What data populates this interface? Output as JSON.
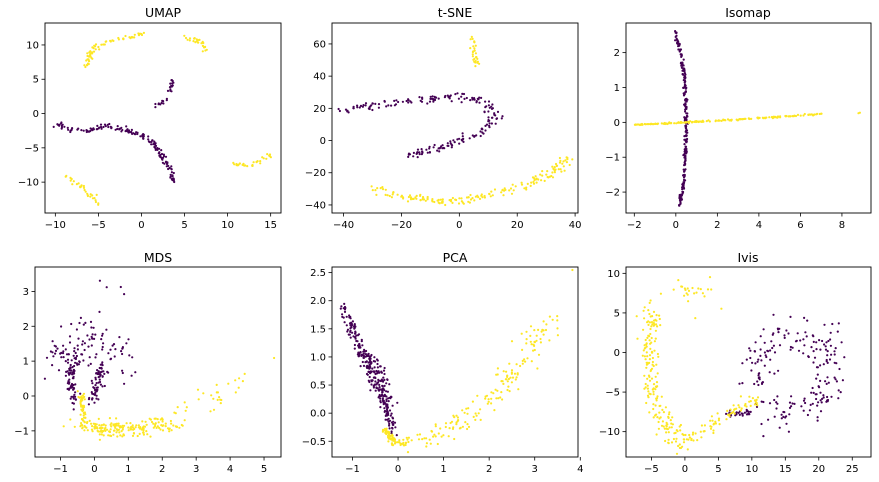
{
  "colors": {
    "class0": "#440154",
    "class1": "#fde725"
  },
  "chart_data": [
    {
      "type": "scatter",
      "title": "UMAP",
      "xlim": [
        -11.2,
        16.2
      ],
      "ylim": [
        -14.5,
        13.2
      ],
      "xticks": [
        -10,
        -5,
        0,
        5,
        10,
        15
      ],
      "yticks": [
        -10,
        -5,
        0,
        5,
        10
      ],
      "series": [
        {
          "color_key": "class0",
          "n": 160,
          "jitter": [
            0.18,
            0.18
          ],
          "path": [
            [
              -10,
              -1.5
            ],
            [
              -8,
              -2.3
            ],
            [
              -6,
              -2.5
            ],
            [
              -4,
              -1.6
            ],
            [
              -2,
              -2.5
            ],
            [
              0,
              -3
            ],
            [
              1.5,
              -4.5
            ],
            [
              2.5,
              -6.5
            ],
            [
              3.5,
              -8.5
            ],
            [
              3.8,
              -10
            ]
          ]
        },
        {
          "color_key": "class0",
          "n": 25,
          "jitter": [
            0.12,
            0.12
          ],
          "path": [
            [
              1.5,
              1
            ],
            [
              2.8,
              1.8
            ],
            [
              3.3,
              3
            ],
            [
              3.6,
              5
            ]
          ]
        },
        {
          "color_key": "class1",
          "n": 35,
          "jitter": [
            0.2,
            0.2
          ],
          "path": [
            [
              -6.5,
              6.8
            ],
            [
              -5.8,
              8.5
            ],
            [
              -5.2,
              10
            ]
          ]
        },
        {
          "color_key": "class1",
          "n": 30,
          "jitter": [
            0.12,
            0.12
          ],
          "path": [
            [
              -4.8,
              10.2
            ],
            [
              -2,
              11
            ],
            [
              0.5,
              11.7
            ]
          ]
        },
        {
          "color_key": "class1",
          "n": 25,
          "jitter": [
            0.15,
            0.15
          ],
          "path": [
            [
              5.2,
              11.2
            ],
            [
              6.8,
              10.5
            ],
            [
              7.5,
              9.2
            ]
          ]
        },
        {
          "color_key": "class1",
          "n": 30,
          "jitter": [
            0.2,
            0.2
          ],
          "path": [
            [
              -9,
              -9
            ],
            [
              -7,
              -10.5
            ],
            [
              -5,
              -13
            ]
          ]
        },
        {
          "color_key": "class1",
          "n": 30,
          "jitter": [
            0.15,
            0.15
          ],
          "path": [
            [
              10.5,
              -7.2
            ],
            [
              12.5,
              -7.8
            ],
            [
              15,
              -6
            ]
          ]
        }
      ]
    },
    {
      "type": "scatter",
      "title": "t-SNE",
      "xlim": [
        -44,
        41
      ],
      "ylim": [
        -45,
        73
      ],
      "xticks": [
        -40,
        -20,
        0,
        20,
        40
      ],
      "yticks": [
        -40,
        -20,
        0,
        20,
        40,
        60
      ],
      "series": [
        {
          "color_key": "class0",
          "n": 200,
          "jitter": [
            1.2,
            1.3
          ],
          "path": [
            [
              -40,
              18
            ],
            [
              -30,
              22
            ],
            [
              -20,
              24
            ],
            [
              -10,
              26
            ],
            [
              0,
              28
            ],
            [
              8,
              24
            ],
            [
              12,
              15
            ],
            [
              8,
              5
            ],
            [
              0,
              0
            ],
            [
              -8,
              -5
            ],
            [
              -18,
              -9
            ]
          ]
        },
        {
          "color_key": "class1",
          "n": 170,
          "jitter": [
            1.3,
            1.3
          ],
          "path": [
            [
              -30,
              -29
            ],
            [
              -25,
              -33
            ],
            [
              -15,
              -36
            ],
            [
              -5,
              -38
            ],
            [
              5,
              -36
            ],
            [
              15,
              -32
            ],
            [
              25,
              -26
            ],
            [
              32,
              -20
            ],
            [
              37,
              -10
            ]
          ]
        },
        {
          "color_key": "class1",
          "n": 30,
          "jitter": [
            0.6,
            1.0
          ],
          "path": [
            [
              4,
              65
            ],
            [
              5,
              56
            ],
            [
              6,
              47
            ]
          ]
        }
      ]
    },
    {
      "type": "scatter",
      "title": "Isomap",
      "xlim": [
        -2.4,
        9.4
      ],
      "ylim": [
        -2.6,
        2.85
      ],
      "xticks": [
        -2,
        0,
        2,
        4,
        6,
        8
      ],
      "yticks": [
        -2,
        -1,
        0,
        1,
        2
      ],
      "series": [
        {
          "color_key": "class0",
          "n": 250,
          "jitter": [
            0.04,
            0.02
          ],
          "path": [
            [
              0,
              2.6
            ],
            [
              0.3,
              1.8
            ],
            [
              0.45,
              1
            ],
            [
              0.5,
              0
            ],
            [
              0.45,
              -1
            ],
            [
              0.35,
              -1.8
            ],
            [
              0.2,
              -2.4
            ]
          ]
        },
        {
          "color_key": "class1",
          "n": 170,
          "jitter": [
            0.08,
            0.01
          ],
          "path": [
            [
              -2,
              -0.07
            ],
            [
              0,
              -0.02
            ],
            [
              2,
              0.05
            ],
            [
              4,
              0.12
            ],
            [
              6,
              0.2
            ],
            [
              7,
              0.24
            ]
          ]
        },
        {
          "color_key": "class1",
          "n": 2,
          "jitter": [
            0.05,
            0.01
          ],
          "path": [
            [
              8.8,
              0.27
            ],
            [
              8.85,
              0.27
            ]
          ]
        }
      ]
    },
    {
      "type": "scatter",
      "title": "MDS",
      "xlim": [
        -1.75,
        5.5
      ],
      "ylim": [
        -1.75,
        3.7
      ],
      "xticks": [
        -1,
        0,
        1,
        2,
        3,
        4,
        5
      ],
      "yticks": [
        -1,
        0,
        1,
        2,
        3
      ],
      "series": [
        {
          "color_key": "class0",
          "n": 120,
          "jitter": [
            0.35,
            0.4
          ],
          "path": [
            [
              -1.1,
              1.2
            ],
            [
              -0.7,
              1.0
            ],
            [
              -0.2,
              1.4
            ],
            [
              0.3,
              1.2
            ],
            [
              0.7,
              1.1
            ]
          ]
        },
        {
          "color_key": "class0",
          "n": 60,
          "jitter": [
            0.07,
            0.08
          ],
          "path": [
            [
              -0.7,
              0.9
            ],
            [
              -0.65,
              0.3
            ],
            [
              -0.6,
              -0.2
            ]
          ]
        },
        {
          "color_key": "class0",
          "n": 60,
          "jitter": [
            0.07,
            0.08
          ],
          "path": [
            [
              0.3,
              1.0
            ],
            [
              0.05,
              0.4
            ],
            [
              -0.1,
              -0.2
            ]
          ]
        },
        {
          "color_key": "class0",
          "n": 6,
          "jitter": [
            0.2,
            0.3
          ],
          "path": [
            [
              -0.2,
              2.8
            ],
            [
              0.5,
              2.7
            ],
            [
              0.6,
              3.4
            ]
          ]
        },
        {
          "color_key": "class1",
          "n": 180,
          "jitter": [
            0.3,
            0.12
          ],
          "path": [
            [
              -0.3,
              -0.85
            ],
            [
              0.5,
              -0.95
            ],
            [
              1.5,
              -0.95
            ],
            [
              2.2,
              -0.7
            ]
          ]
        },
        {
          "color_key": "class1",
          "n": 50,
          "jitter": [
            0.04,
            0.06
          ],
          "path": [
            [
              -0.4,
              0.1
            ],
            [
              -0.35,
              -0.3
            ],
            [
              -0.3,
              -0.6
            ],
            [
              -0.3,
              -0.9
            ]
          ]
        },
        {
          "color_key": "class1",
          "n": 30,
          "jitter": [
            0.3,
            0.2
          ],
          "path": [
            [
              2.5,
              -0.5
            ],
            [
              3.3,
              -0.1
            ],
            [
              4.2,
              0.3
            ]
          ]
        },
        {
          "color_key": "class1",
          "n": 1,
          "jitter": [
            0.01,
            0.01
          ],
          "path": [
            [
              5.3,
              1.1
            ],
            [
              5.3,
              1.1
            ]
          ]
        }
      ]
    },
    {
      "type": "scatter",
      "title": "PCA",
      "xlim": [
        -1.45,
        3.95
      ],
      "ylim": [
        -0.78,
        2.6
      ],
      "xticks": [
        -1,
        0,
        1,
        2,
        3,
        4
      ],
      "yticks": [
        -0.5,
        0.0,
        0.5,
        1.0,
        1.5,
        2.0,
        2.5
      ],
      "series": [
        {
          "color_key": "class0",
          "n": 220,
          "jitter": [
            0.05,
            0.07
          ],
          "path": [
            [
              -1.2,
              1.8
            ],
            [
              -0.9,
              1.3
            ],
            [
              -0.6,
              0.7
            ],
            [
              -0.35,
              0.25
            ],
            [
              -0.1,
              -0.3
            ]
          ]
        },
        {
          "color_key": "class0",
          "n": 80,
          "jitter": [
            0.06,
            0.1
          ],
          "path": [
            [
              -0.7,
              1.1
            ],
            [
              -0.4,
              0.7
            ],
            [
              -0.2,
              0.2
            ]
          ]
        },
        {
          "color_key": "class1",
          "n": 60,
          "jitter": [
            0.04,
            0.03
          ],
          "path": [
            [
              -0.3,
              -0.3
            ],
            [
              -0.1,
              -0.5
            ],
            [
              0.1,
              -0.55
            ]
          ]
        },
        {
          "color_key": "class1",
          "n": 170,
          "jitter": [
            0.15,
            0.08
          ],
          "path": [
            [
              0,
              -0.55
            ],
            [
              0.8,
              -0.4
            ],
            [
              1.5,
              -0.1
            ],
            [
              2.2,
              0.4
            ],
            [
              2.8,
              1.0
            ],
            [
              3.4,
              1.7
            ]
          ]
        },
        {
          "color_key": "class1",
          "n": 1,
          "jitter": [
            0.01,
            0.01
          ],
          "path": [
            [
              3.8,
              2.55
            ],
            [
              3.8,
              2.55
            ]
          ]
        }
      ]
    },
    {
      "type": "scatter",
      "title": "Ivis",
      "xlim": [
        -8.8,
        27.8
      ],
      "ylim": [
        -13.2,
        10.8
      ],
      "xticks": [
        -5,
        0,
        5,
        10,
        15,
        20,
        25
      ],
      "yticks": [
        -10,
        -5,
        0,
        5,
        10
      ],
      "series": [
        {
          "color_key": "class0",
          "n": 200,
          "jitter": [
            1.3,
            1.3
          ],
          "path": [
            [
              10,
              -4
            ],
            [
              12,
              0
            ],
            [
              15,
              2.5
            ],
            [
              20,
              2
            ],
            [
              22,
              -2
            ],
            [
              20,
              -6
            ],
            [
              15,
              -7
            ],
            [
              10,
              -7.5
            ]
          ]
        },
        {
          "color_key": "class0",
          "n": 30,
          "jitter": [
            0.3,
            0.15
          ],
          "path": [
            [
              6,
              -7.8
            ],
            [
              8,
              -7.7
            ],
            [
              10,
              -7.6
            ]
          ]
        },
        {
          "color_key": "class1",
          "n": 180,
          "jitter": [
            0.7,
            1.0
          ],
          "path": [
            [
              -5,
              5
            ],
            [
              -5.5,
              0
            ],
            [
              -5,
              -4
            ],
            [
              -4,
              -8
            ],
            [
              -2,
              -10.5
            ],
            [
              0,
              -11.5
            ]
          ]
        },
        {
          "color_key": "class1",
          "n": 70,
          "jitter": [
            0.5,
            0.35
          ],
          "path": [
            [
              0,
              -11
            ],
            [
              3,
              -10
            ],
            [
              6,
              -8
            ],
            [
              9,
              -6.5
            ],
            [
              11,
              -5.8
            ]
          ]
        },
        {
          "color_key": "class1",
          "n": 25,
          "jitter": [
            1.5,
            1.0
          ],
          "path": [
            [
              -2,
              8
            ],
            [
              0,
              8
            ],
            [
              2,
              7
            ]
          ]
        }
      ]
    }
  ]
}
